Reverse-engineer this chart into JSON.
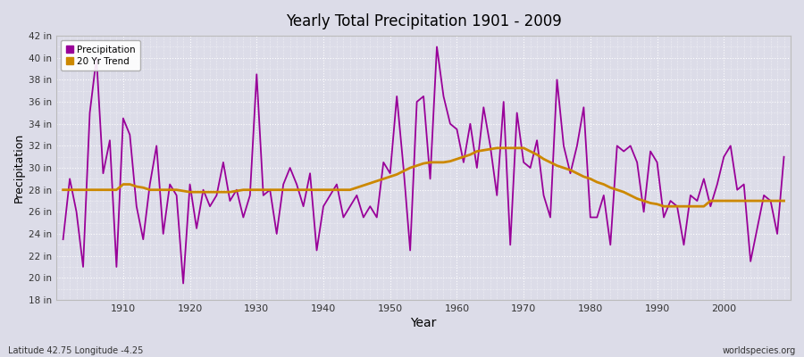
{
  "title": "Yearly Total Precipitation 1901 - 2009",
  "xlabel": "Year",
  "ylabel": "Precipitation",
  "lat_lon_label": "Latitude 42.75 Longitude -4.25",
  "watermark": "worldspecies.org",
  "precip_color": "#990099",
  "trend_color": "#CC8800",
  "bg_color": "#DCDCE8",
  "plot_bg_color": "#DCDCE8",
  "grid_color": "#FFFFFF",
  "ylim": [
    18,
    42
  ],
  "ytick_labels": [
    "18 in",
    "20 in",
    "22 in",
    "24 in",
    "26 in",
    "28 in",
    "30 in",
    "32 in",
    "34 in",
    "36 in",
    "38 in",
    "40 in",
    "42 in"
  ],
  "ytick_values": [
    18,
    20,
    22,
    24,
    26,
    28,
    30,
    32,
    34,
    36,
    38,
    40,
    42
  ],
  "years": [
    1901,
    1902,
    1903,
    1904,
    1905,
    1906,
    1907,
    1908,
    1909,
    1910,
    1911,
    1912,
    1913,
    1914,
    1915,
    1916,
    1917,
    1918,
    1919,
    1920,
    1921,
    1922,
    1923,
    1924,
    1925,
    1926,
    1927,
    1928,
    1929,
    1930,
    1931,
    1932,
    1933,
    1934,
    1935,
    1936,
    1937,
    1938,
    1939,
    1940,
    1941,
    1942,
    1943,
    1944,
    1945,
    1946,
    1947,
    1948,
    1949,
    1950,
    1951,
    1952,
    1953,
    1954,
    1955,
    1956,
    1957,
    1958,
    1959,
    1960,
    1961,
    1962,
    1963,
    1964,
    1965,
    1966,
    1967,
    1968,
    1969,
    1970,
    1971,
    1972,
    1973,
    1974,
    1975,
    1976,
    1977,
    1978,
    1979,
    1980,
    1981,
    1982,
    1983,
    1984,
    1985,
    1986,
    1987,
    1988,
    1989,
    1990,
    1991,
    1992,
    1993,
    1994,
    1995,
    1996,
    1997,
    1998,
    1999,
    2000,
    2001,
    2002,
    2003,
    2004,
    2005,
    2006,
    2007,
    2008,
    2009
  ],
  "precipitation": [
    23.5,
    29.0,
    26.0,
    21.0,
    35.0,
    40.0,
    29.5,
    32.5,
    21.0,
    34.5,
    33.0,
    26.5,
    23.5,
    28.5,
    32.0,
    24.0,
    28.5,
    27.5,
    19.5,
    28.5,
    24.5,
    28.0,
    26.5,
    27.5,
    30.5,
    27.0,
    28.0,
    25.5,
    27.5,
    38.5,
    27.5,
    28.0,
    24.0,
    28.5,
    30.0,
    28.5,
    26.5,
    29.5,
    22.5,
    26.5,
    27.5,
    28.5,
    25.5,
    26.5,
    27.5,
    25.5,
    26.5,
    25.5,
    30.5,
    29.5,
    36.5,
    30.0,
    22.5,
    36.0,
    36.5,
    29.0,
    41.0,
    36.5,
    34.0,
    33.5,
    30.5,
    34.0,
    30.0,
    35.5,
    32.0,
    27.5,
    36.0,
    23.0,
    35.0,
    30.5,
    30.0,
    32.5,
    27.5,
    25.5,
    38.0,
    32.0,
    29.5,
    32.0,
    35.5,
    25.5,
    25.5,
    27.5,
    23.0,
    32.0,
    31.5,
    32.0,
    30.5,
    26.0,
    31.5,
    30.5,
    25.5,
    27.0,
    26.5,
    23.0,
    27.5,
    27.0,
    29.0,
    26.5,
    28.5,
    31.0,
    32.0,
    28.0,
    28.5,
    21.5,
    24.5,
    27.5,
    27.0,
    24.0,
    31.0
  ],
  "trend": [
    28.0,
    28.0,
    28.0,
    28.0,
    28.0,
    28.0,
    28.0,
    28.0,
    28.0,
    28.5,
    28.5,
    28.3,
    28.2,
    28.0,
    28.0,
    28.0,
    28.0,
    28.0,
    27.9,
    27.8,
    27.8,
    27.8,
    27.8,
    27.8,
    27.8,
    27.8,
    27.9,
    28.0,
    28.0,
    28.0,
    28.0,
    28.0,
    28.0,
    28.0,
    28.0,
    28.0,
    28.0,
    28.0,
    28.0,
    28.0,
    28.0,
    28.0,
    28.0,
    28.0,
    28.2,
    28.4,
    28.6,
    28.8,
    29.0,
    29.2,
    29.4,
    29.7,
    30.0,
    30.2,
    30.4,
    30.5,
    30.5,
    30.5,
    30.6,
    30.8,
    31.0,
    31.2,
    31.5,
    31.6,
    31.7,
    31.8,
    31.8,
    31.8,
    31.8,
    31.8,
    31.5,
    31.2,
    30.8,
    30.5,
    30.2,
    30.0,
    29.8,
    29.5,
    29.2,
    29.0,
    28.7,
    28.5,
    28.2,
    28.0,
    27.8,
    27.5,
    27.2,
    27.0,
    26.8,
    26.7,
    26.5,
    26.5,
    26.5,
    26.5,
    26.5,
    26.5,
    26.5,
    27.0,
    27.0,
    27.0,
    27.0,
    27.0,
    27.0,
    27.0,
    27.0,
    27.0,
    27.0,
    27.0,
    27.0
  ]
}
